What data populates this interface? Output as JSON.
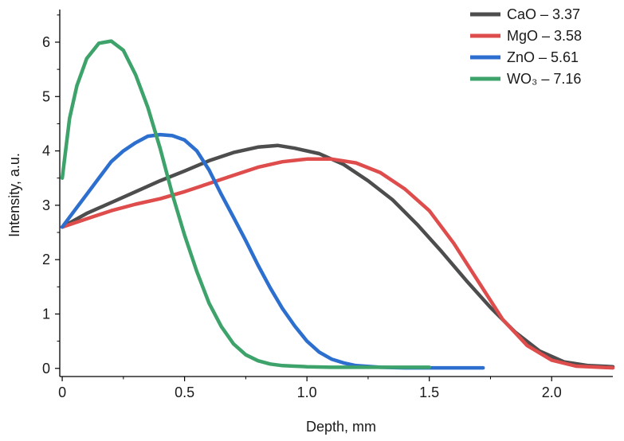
{
  "chart_data": {
    "type": "line",
    "xlabel": "Depth, mm",
    "ylabel": "Intensity, a.u.",
    "xlim": [
      -0.01,
      2.25
    ],
    "ylim": [
      -0.15,
      6.6
    ],
    "xticks": [
      0,
      0.5,
      1.0,
      1.5,
      2.0
    ],
    "xtick_labels": [
      "0",
      "0.5",
      "1.0",
      "1.5",
      "2.0"
    ],
    "yticks": [
      0,
      1,
      2,
      3,
      4,
      5,
      6
    ],
    "ytick_labels": [
      "0",
      "1",
      "2",
      "3",
      "4",
      "5",
      "6"
    ],
    "grid": false,
    "legend_position": "top-right",
    "series": [
      {
        "name": "CaO – 3.37",
        "color": "#4d4d4d",
        "x": [
          0,
          0.1,
          0.2,
          0.3,
          0.4,
          0.5,
          0.6,
          0.7,
          0.8,
          0.88,
          0.95,
          1.05,
          1.15,
          1.25,
          1.35,
          1.45,
          1.55,
          1.65,
          1.75,
          1.85,
          1.95,
          2.05,
          2.15,
          2.25
        ],
        "y": [
          2.6,
          2.85,
          3.05,
          3.25,
          3.45,
          3.63,
          3.82,
          3.97,
          4.07,
          4.1,
          4.05,
          3.95,
          3.75,
          3.45,
          3.1,
          2.65,
          2.15,
          1.62,
          1.12,
          0.67,
          0.32,
          0.12,
          0.05,
          0.03
        ]
      },
      {
        "name": "MgO – 3.58",
        "color": "#de4c4c",
        "x": [
          0,
          0.1,
          0.2,
          0.3,
          0.4,
          0.5,
          0.6,
          0.7,
          0.8,
          0.9,
          1.0,
          1.1,
          1.2,
          1.3,
          1.4,
          1.5,
          1.6,
          1.7,
          1.8,
          1.9,
          2.0,
          2.1,
          2.25
        ],
        "y": [
          2.6,
          2.75,
          2.9,
          3.02,
          3.12,
          3.25,
          3.4,
          3.55,
          3.7,
          3.8,
          3.85,
          3.85,
          3.78,
          3.6,
          3.3,
          2.9,
          2.3,
          1.6,
          0.9,
          0.42,
          0.15,
          0.04,
          0.01
        ]
      },
      {
        "name": "ZnO – 5.61",
        "color": "#2c6fcf",
        "x": [
          0,
          0.05,
          0.1,
          0.15,
          0.2,
          0.25,
          0.3,
          0.35,
          0.4,
          0.45,
          0.5,
          0.55,
          0.6,
          0.65,
          0.7,
          0.75,
          0.8,
          0.85,
          0.9,
          0.95,
          1.0,
          1.05,
          1.1,
          1.15,
          1.2,
          1.3,
          1.4,
          1.5,
          1.6,
          1.72
        ],
        "y": [
          2.6,
          2.9,
          3.2,
          3.5,
          3.8,
          4.0,
          4.15,
          4.27,
          4.3,
          4.28,
          4.2,
          4.0,
          3.65,
          3.2,
          2.78,
          2.35,
          1.9,
          1.48,
          1.1,
          0.78,
          0.5,
          0.3,
          0.17,
          0.1,
          0.05,
          0.02,
          0.01,
          0.01,
          0.01,
          0.01
        ]
      },
      {
        "name": "WO₃ – 7.16",
        "color": "#3da36b",
        "x": [
          0,
          0.03,
          0.06,
          0.1,
          0.15,
          0.2,
          0.25,
          0.3,
          0.35,
          0.4,
          0.45,
          0.5,
          0.55,
          0.6,
          0.65,
          0.7,
          0.75,
          0.8,
          0.85,
          0.9,
          0.95,
          1.0,
          1.1,
          1.2,
          1.3,
          1.4,
          1.5
        ],
        "y": [
          3.5,
          4.6,
          5.2,
          5.7,
          5.98,
          6.02,
          5.85,
          5.4,
          4.8,
          4.05,
          3.2,
          2.45,
          1.78,
          1.2,
          0.77,
          0.45,
          0.25,
          0.14,
          0.08,
          0.05,
          0.04,
          0.03,
          0.02,
          0.02,
          0.02,
          0.02,
          0.02
        ]
      }
    ]
  }
}
